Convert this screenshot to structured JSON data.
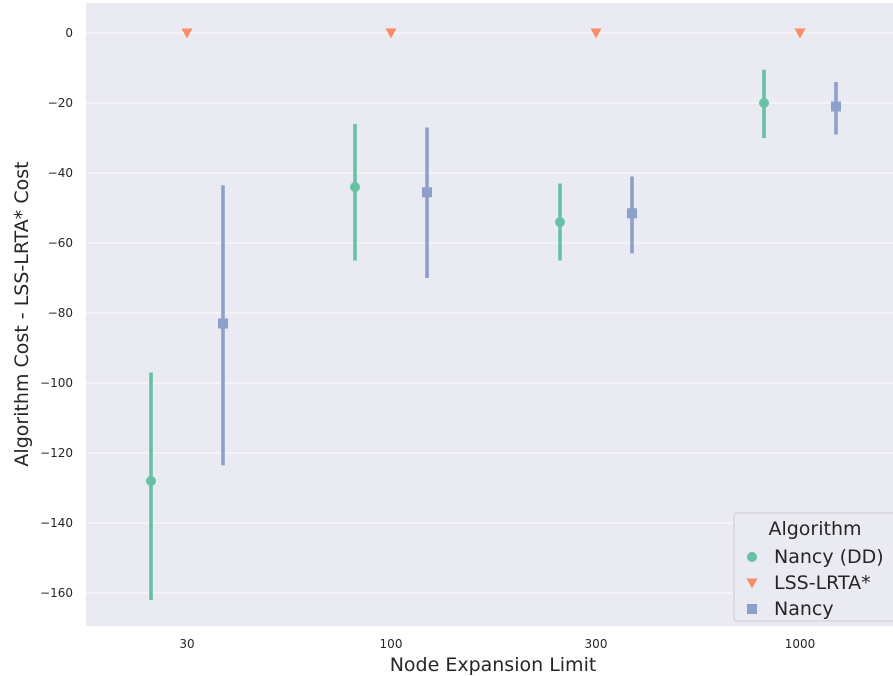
{
  "chart_data": {
    "type": "pointplot",
    "xlabel": "Node Expansion Limit",
    "ylabel": "Algorithm Cost - LSS-LRTA* Cost",
    "categories": [
      "30",
      "100",
      "300",
      "1000"
    ],
    "ylim": [
      -170,
      8.5
    ],
    "yticks": [
      0,
      -20,
      -40,
      -60,
      -80,
      -100,
      -120,
      -140,
      -160
    ],
    "ytick_labels": [
      "0",
      "−20",
      "−40",
      "−60",
      "−80",
      "−100",
      "−120",
      "−140",
      "−160"
    ],
    "grid": true,
    "legend": {
      "title": "Algorithm",
      "placement": "bottom-right"
    },
    "series": [
      {
        "name": "Nancy (DD)",
        "color": "#66c2a5",
        "marker": "circle",
        "values": [
          -128,
          -44,
          -54,
          -20
        ],
        "ci_low": [
          -162,
          -65,
          -65,
          -30
        ],
        "ci_high": [
          -97,
          -26,
          -43,
          -10.5
        ]
      },
      {
        "name": "LSS-LRTA*",
        "color": "#fc8d62",
        "marker": "triangle-down",
        "values": [
          0,
          0,
          0,
          0
        ],
        "ci_low": [
          0,
          0,
          0,
          0
        ],
        "ci_high": [
          0,
          0,
          0,
          0
        ]
      },
      {
        "name": "Nancy",
        "color": "#8da0cb",
        "marker": "square",
        "values": [
          -83,
          -45.5,
          -51.5,
          -21
        ],
        "ci_low": [
          -123.5,
          -70,
          -63,
          -29
        ],
        "ci_high": [
          -43.5,
          -27,
          -41,
          -14
        ]
      }
    ]
  }
}
